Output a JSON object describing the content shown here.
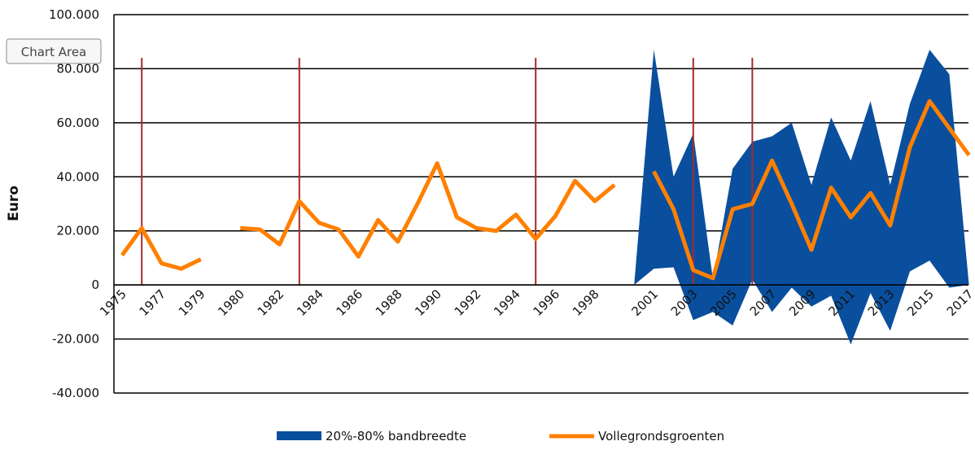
{
  "chart_data": {
    "type": "band-line",
    "tooltip": "Chart Area",
    "y_label": "Euro",
    "categories": [
      "1975",
      null,
      "1977",
      null,
      "1979",
      null,
      "1980",
      null,
      "1982",
      null,
      "1984",
      null,
      "1986",
      null,
      "1988",
      null,
      "1990",
      null,
      "1992",
      null,
      "1994",
      null,
      "1996",
      null,
      "1998",
      null,
      null,
      "2001",
      null,
      "2003",
      null,
      "2005",
      null,
      "2007",
      null,
      "2009",
      null,
      "2011",
      null,
      "2013",
      null,
      "2015",
      null,
      "2017"
    ],
    "series": [
      {
        "name": "20%-80% bandbreedte",
        "color": "#0a4f9e",
        "kind": "band",
        "high": [
          null,
          null,
          null,
          null,
          null,
          null,
          null,
          null,
          null,
          null,
          null,
          null,
          null,
          null,
          null,
          null,
          null,
          null,
          null,
          null,
          null,
          null,
          null,
          null,
          null,
          null,
          0,
          87000,
          40000,
          56000,
          2000,
          43000,
          53000,
          55000,
          60000,
          37000,
          62000,
          46000,
          68000,
          37000,
          67000,
          87000,
          78000,
          0
        ],
        "low": [
          null,
          null,
          null,
          null,
          null,
          null,
          null,
          null,
          null,
          null,
          null,
          null,
          null,
          null,
          null,
          null,
          null,
          null,
          null,
          null,
          null,
          null,
          null,
          null,
          null,
          null,
          0,
          6000,
          6500,
          -13000,
          -10000,
          -15000,
          2000,
          -10000,
          -1000,
          -8000,
          -4000,
          -22000,
          -3000,
          -17000,
          5000,
          9000,
          -1000,
          0
        ]
      },
      {
        "name": "Vollegrondsgroenten",
        "color": "#ff8000",
        "kind": "line",
        "values": [
          11000,
          21000,
          8000,
          6000,
          9500,
          null,
          21000,
          20500,
          15000,
          31000,
          23000,
          20500,
          10500,
          24000,
          16000,
          30000,
          45000,
          25000,
          21000,
          20000,
          26000,
          17000,
          25500,
          38500,
          31000,
          37000,
          null,
          42000,
          28000,
          5500,
          2500,
          28000,
          30000,
          46000,
          30000,
          13000,
          36000,
          25000,
          34000,
          22000,
          51000,
          68000,
          58000,
          48000
        ]
      }
    ],
    "vertical_lines": {
      "color": "#a52a2a",
      "at": [
        1,
        9,
        21,
        29,
        32
      ],
      "from": 0,
      "to": 84000
    },
    "ylim": [
      -40000,
      100000
    ],
    "yticks": [
      {
        "value": -40000,
        "label": "-40.000"
      },
      {
        "value": -20000,
        "label": "-20.000"
      },
      0,
      {
        "value": 20000,
        "label": "20.000"
      },
      {
        "value": 40000,
        "label": "40.000"
      },
      {
        "value": 60000,
        "label": "60.000"
      },
      {
        "value": 80000,
        "label": "80.000"
      },
      {
        "value": 100000,
        "label": "100.000"
      }
    ],
    "grid": true
  }
}
